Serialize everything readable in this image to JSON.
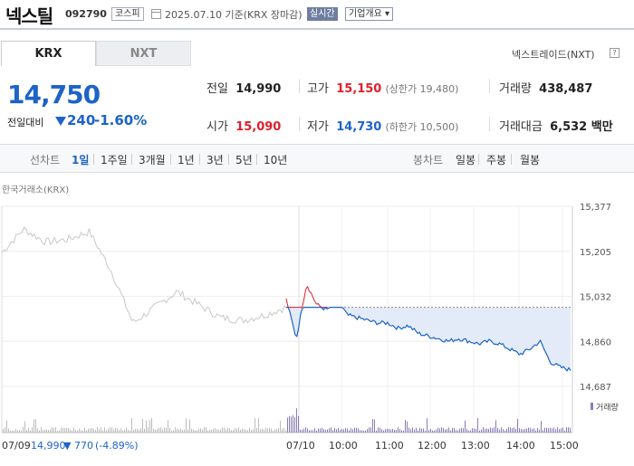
{
  "header": {
    "name": "넥스틸",
    "code": "092790",
    "market": "코스피",
    "date": "2025.07.10 기준(KRX 장마감)",
    "realtime": "실시간",
    "company_info": "기업개요"
  },
  "tabs": {
    "krx": "KRX",
    "nxt": "NXT",
    "nxt_note": "넥스트레이드(NXT)",
    "help": "?"
  },
  "quote": {
    "price": "14,750",
    "change_label": "전일대비",
    "change": "240",
    "change_pct": "-1.60%",
    "prev_label": "전일",
    "prev": "14,990",
    "open_label": "시가",
    "open": "15,090",
    "high_label": "고가",
    "high": "15,150",
    "upper_limit": "(상한가 19,480)",
    "low_label": "저가",
    "low": "14,730",
    "lower_limit": "(하한가 10,500)",
    "volume_label": "거래량",
    "volume": "438,487",
    "amount_label": "거래대금",
    "amount": "6,532 백만"
  },
  "periods": {
    "line_label": "선차트",
    "items": [
      "1일",
      "1주일",
      "3개월",
      "1년",
      "3년",
      "5년",
      "10년"
    ],
    "active": "1일",
    "candle_label": "봉차트",
    "candle_items": [
      "일봉",
      "주봉",
      "월봉"
    ]
  },
  "chart_label": "한국거래소(KRX)",
  "volume_legend": "거래량",
  "prev_day_note": {
    "date": "07/09",
    "close": "14,990",
    "change": "▼ 770",
    "pct": "(-4.89%)"
  },
  "colors": {
    "up": "#e11f2a",
    "down": "#1d63c8",
    "prev": "#c8c8c8",
    "fill": "#e3ebf8"
  },
  "chart_data": {
    "type": "line",
    "ylim": [
      14687,
      15377
    ],
    "yticks": [
      "15,377",
      "15,205",
      "15,032",
      "14,860",
      "14,687"
    ],
    "xticks": [
      "07/09",
      "07/10",
      "10:00",
      "11:00",
      "12:00",
      "13:00",
      "14:00",
      "15:00"
    ],
    "baseline": 14990,
    "series": [
      {
        "x": [
          "07/09 09:00",
          "07/09 09:30",
          "07/09 10:00",
          "07/09 10:30",
          "07/09 11:00",
          "07/09 11:30",
          "07/09 12:00",
          "07/09 12:30",
          "07/09 13:00",
          "07/09 13:30",
          "07/09 14:00",
          "07/09 14:30",
          "07/09 15:00",
          "07/09 15:30"
        ],
        "values": [
          15200,
          15290,
          15240,
          15250,
          15280,
          15130,
          14930,
          14990,
          15050,
          15000,
          14950,
          14940,
          14960,
          14990
        ]
      },
      {
        "x": [
          "09:00",
          "09:05",
          "09:10",
          "09:20",
          "09:30",
          "09:45",
          "10:00",
          "10:15",
          "10:30",
          "10:45",
          "11:00",
          "11:15",
          "11:30",
          "11:45",
          "12:00",
          "12:15",
          "12:30",
          "12:45",
          "13:00",
          "13:15",
          "13:30",
          "13:45",
          "14:00",
          "14:15",
          "14:30",
          "14:45",
          "15:00",
          "15:10",
          "15:20"
        ],
        "values": [
          15020,
          14870,
          15080,
          15000,
          14980,
          15020,
          14960,
          14950,
          14940,
          14930,
          14930,
          14910,
          14920,
          14890,
          14880,
          14870,
          14860,
          14870,
          14860,
          14850,
          14860,
          14850,
          14830,
          14810,
          14830,
          14860,
          14780,
          14760,
          14750
        ]
      }
    ]
  }
}
